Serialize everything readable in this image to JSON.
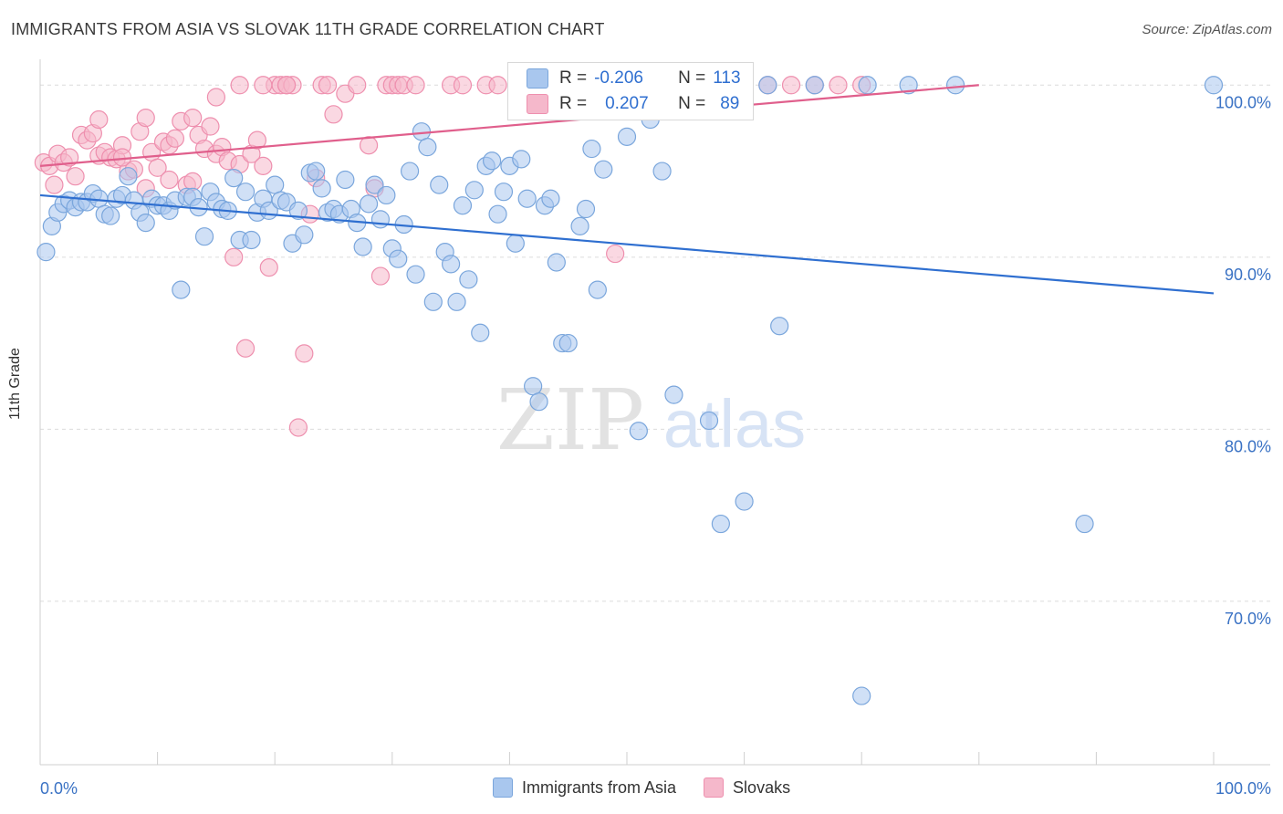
{
  "header": {
    "title": "IMMIGRANTS FROM ASIA VS SLOVAK 11TH GRADE CORRELATION CHART",
    "source": "Source: ZipAtlas.com"
  },
  "watermark": {
    "zip": "ZIP",
    "atlas": "atlas"
  },
  "stats": {
    "blue": {
      "r_label": "R =",
      "r_value": "-0.206",
      "n_label": "N =",
      "n_value": "113"
    },
    "pink": {
      "r_label": "R =",
      "r_value": "0.207",
      "n_label": "N =",
      "n_value": "89"
    }
  },
  "colors": {
    "blue_fill": "#a9c7ee",
    "blue_stroke": "#7aa6dc",
    "blue_line": "#2f6fd0",
    "pink_fill": "#f5b8cb",
    "pink_stroke": "#ee8fae",
    "pink_line": "#e05f8c",
    "tick_label": "#3a72c4",
    "grid": "#dcdcdc"
  },
  "chart_data": {
    "type": "scatter",
    "title": "IMMIGRANTS FROM ASIA VS SLOVAK 11TH GRADE CORRELATION CHART",
    "xlabel": "",
    "ylabel": "11th Grade",
    "xlim": [
      0,
      100
    ],
    "ylim": [
      60.5,
      101.5
    ],
    "x_tick_labels": [
      "0.0%",
      "100.0%"
    ],
    "y_ticks": [
      {
        "value": 100,
        "label": "100.0%"
      },
      {
        "value": 90,
        "label": "90.0%"
      },
      {
        "value": 80,
        "label": "80.0%"
      },
      {
        "value": 70,
        "label": "70.0%"
      }
    ],
    "grid": true,
    "legend_position": "bottom",
    "series": [
      {
        "name": "Immigrants from Asia",
        "color": "#a9c7ee",
        "trend": {
          "x": [
            0,
            100
          ],
          "y": [
            93.6,
            87.9
          ]
        },
        "points": [
          [
            0.5,
            90.3
          ],
          [
            1,
            91.8
          ],
          [
            1.5,
            92.6
          ],
          [
            2,
            93.1
          ],
          [
            2.5,
            93.3
          ],
          [
            3,
            92.9
          ],
          [
            3.5,
            93.2
          ],
          [
            4,
            93.2
          ],
          [
            4.5,
            93.7
          ],
          [
            5,
            93.4
          ],
          [
            5.5,
            92.5
          ],
          [
            6,
            92.4
          ],
          [
            6.5,
            93.4
          ],
          [
            7,
            93.6
          ],
          [
            7.5,
            94.7
          ],
          [
            8,
            93.3
          ],
          [
            8.5,
            92.6
          ],
          [
            9,
            92.0
          ],
          [
            9.5,
            93.4
          ],
          [
            10,
            93.0
          ],
          [
            10.5,
            93.0
          ],
          [
            11,
            92.7
          ],
          [
            11.5,
            93.3
          ],
          [
            12,
            88.1
          ],
          [
            12.5,
            93.5
          ],
          [
            13,
            93.5
          ],
          [
            13.5,
            92.9
          ],
          [
            14,
            91.2
          ],
          [
            14.5,
            93.8
          ],
          [
            15,
            93.2
          ],
          [
            15.5,
            92.8
          ],
          [
            16,
            92.7
          ],
          [
            16.5,
            94.6
          ],
          [
            17,
            91.0
          ],
          [
            17.5,
            93.8
          ],
          [
            18,
            91.0
          ],
          [
            18.5,
            92.6
          ],
          [
            19,
            93.4
          ],
          [
            19.5,
            92.7
          ],
          [
            20,
            94.2
          ],
          [
            20.5,
            93.3
          ],
          [
            21,
            93.2
          ],
          [
            21.5,
            90.8
          ],
          [
            22,
            92.7
          ],
          [
            22.5,
            91.3
          ],
          [
            23,
            94.9
          ],
          [
            23.5,
            95.0
          ],
          [
            24,
            94.0
          ],
          [
            24.5,
            92.6
          ],
          [
            25,
            92.8
          ],
          [
            25.5,
            92.5
          ],
          [
            26,
            94.5
          ],
          [
            26.5,
            92.8
          ],
          [
            27,
            92.0
          ],
          [
            27.5,
            90.6
          ],
          [
            28,
            93.1
          ],
          [
            28.5,
            94.2
          ],
          [
            29,
            92.2
          ],
          [
            29.5,
            93.6
          ],
          [
            30,
            90.5
          ],
          [
            30.5,
            89.9
          ],
          [
            31,
            91.9
          ],
          [
            31.5,
            95.0
          ],
          [
            32,
            89.0
          ],
          [
            32.5,
            97.3
          ],
          [
            33,
            96.4
          ],
          [
            33.5,
            87.4
          ],
          [
            34,
            94.2
          ],
          [
            34.5,
            90.3
          ],
          [
            35,
            89.6
          ],
          [
            35.5,
            87.4
          ],
          [
            36,
            93.0
          ],
          [
            36.5,
            88.7
          ],
          [
            37,
            93.9
          ],
          [
            37.5,
            85.6
          ],
          [
            38,
            95.3
          ],
          [
            38.5,
            95.6
          ],
          [
            39,
            92.5
          ],
          [
            39.5,
            93.8
          ],
          [
            40,
            95.3
          ],
          [
            40.5,
            90.8
          ],
          [
            41,
            95.7
          ],
          [
            41.5,
            93.4
          ],
          [
            42,
            82.5
          ],
          [
            42.5,
            81.6
          ],
          [
            43,
            93.0
          ],
          [
            43.5,
            93.4
          ],
          [
            44,
            89.7
          ],
          [
            44.5,
            85.0
          ],
          [
            45,
            85.0
          ],
          [
            46,
            91.8
          ],
          [
            46.5,
            92.8
          ],
          [
            47,
            96.3
          ],
          [
            47.5,
            88.1
          ],
          [
            48,
            95.1
          ],
          [
            50,
            97.0
          ],
          [
            51,
            79.9
          ],
          [
            52,
            98.0
          ],
          [
            53,
            95.0
          ],
          [
            54,
            82.0
          ],
          [
            57,
            80.5
          ],
          [
            58,
            74.5
          ],
          [
            60,
            75.8
          ],
          [
            63,
            86.0
          ],
          [
            66,
            100.0
          ],
          [
            70,
            64.5
          ],
          [
            70.5,
            100.0
          ],
          [
            74,
            100.0
          ],
          [
            78,
            100.0
          ],
          [
            89,
            74.5
          ],
          [
            100,
            100.0
          ],
          [
            53,
            100.0
          ],
          [
            62,
            100.0
          ]
        ]
      },
      {
        "name": "Slovaks",
        "color": "#f5b8cb",
        "trend": {
          "x": [
            0,
            80
          ],
          "y": [
            95.3,
            100.0
          ]
        },
        "points": [
          [
            0.3,
            95.5
          ],
          [
            0.8,
            95.3
          ],
          [
            1.2,
            94.2
          ],
          [
            1.5,
            96.0
          ],
          [
            2,
            95.5
          ],
          [
            2.5,
            95.8
          ],
          [
            3,
            94.7
          ],
          [
            3.5,
            97.1
          ],
          [
            4,
            96.8
          ],
          [
            4.5,
            97.2
          ],
          [
            5,
            95.9
          ],
          [
            5.5,
            96.1
          ],
          [
            6,
            95.8
          ],
          [
            6.5,
            95.7
          ],
          [
            7,
            96.5
          ],
          [
            7.5,
            95.0
          ],
          [
            8,
            95.1
          ],
          [
            8.5,
            97.3
          ],
          [
            9,
            94.0
          ],
          [
            9.5,
            96.1
          ],
          [
            10,
            95.2
          ],
          [
            10.5,
            96.7
          ],
          [
            11,
            96.5
          ],
          [
            11.5,
            96.9
          ],
          [
            12,
            97.9
          ],
          [
            12.5,
            94.2
          ],
          [
            13,
            94.4
          ],
          [
            13.5,
            97.1
          ],
          [
            14,
            96.3
          ],
          [
            14.5,
            97.6
          ],
          [
            15,
            96.0
          ],
          [
            15.5,
            96.4
          ],
          [
            16,
            95.6
          ],
          [
            16.5,
            90.0
          ],
          [
            17,
            95.4
          ],
          [
            17.5,
            84.7
          ],
          [
            18,
            96.0
          ],
          [
            18.5,
            96.8
          ],
          [
            19,
            95.3
          ],
          [
            19.5,
            89.4
          ],
          [
            20,
            100.0
          ],
          [
            20.5,
            100.0
          ],
          [
            21,
            100.0
          ],
          [
            21.5,
            100.0
          ],
          [
            22,
            80.1
          ],
          [
            22.5,
            84.4
          ],
          [
            23,
            92.5
          ],
          [
            23.5,
            94.6
          ],
          [
            24,
            100.0
          ],
          [
            24.5,
            100.0
          ],
          [
            25,
            98.3
          ],
          [
            26,
            99.5
          ],
          [
            27,
            100.0
          ],
          [
            28,
            96.5
          ],
          [
            28.5,
            94.0
          ],
          [
            29,
            88.9
          ],
          [
            29.5,
            100.0
          ],
          [
            30,
            100.0
          ],
          [
            30.5,
            100.0
          ],
          [
            31,
            100.0
          ],
          [
            32,
            100.0
          ],
          [
            35,
            100.0
          ],
          [
            36,
            100.0
          ],
          [
            38,
            100.0
          ],
          [
            39,
            100.0
          ],
          [
            41,
            100.0
          ],
          [
            43,
            100.0
          ],
          [
            46,
            100.0
          ],
          [
            47,
            100.0
          ],
          [
            49,
            90.2
          ],
          [
            52,
            100.0
          ],
          [
            53,
            100.0
          ],
          [
            55,
            100.0
          ],
          [
            57,
            100.0
          ],
          [
            60,
            100.0
          ],
          [
            62,
            100.0
          ],
          [
            64,
            100.0
          ],
          [
            66,
            100.0
          ],
          [
            68,
            100.0
          ],
          [
            70,
            100.0
          ],
          [
            5,
            98.0
          ],
          [
            7,
            95.8
          ],
          [
            9,
            98.1
          ],
          [
            11,
            94.5
          ],
          [
            13,
            98.1
          ],
          [
            15,
            99.3
          ],
          [
            17,
            100.0
          ],
          [
            19,
            100.0
          ],
          [
            21,
            100.0
          ]
        ]
      }
    ]
  }
}
